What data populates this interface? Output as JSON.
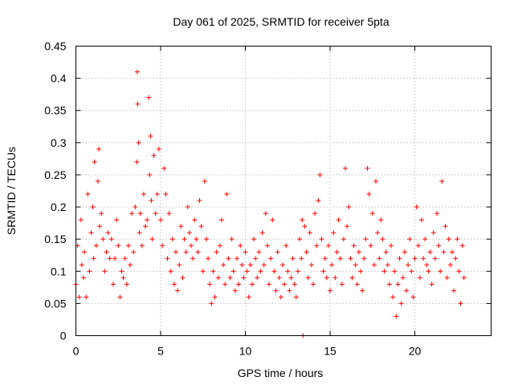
{
  "chart_data": {
    "type": "scatter",
    "title": "Day 061 of 2025, SRMTID for receiver 5pta",
    "xlabel": "GPS time / hours",
    "ylabel": "SRMTID / TECUs",
    "xlim": [
      0,
      24.5
    ],
    "ylim": [
      0,
      0.45
    ],
    "xticks": [
      0,
      5,
      10,
      15,
      20
    ],
    "xtick_labels": [
      "0",
      "5",
      "10",
      "15",
      "20"
    ],
    "yticks": [
      0,
      0.05,
      0.1,
      0.15,
      0.2,
      0.25,
      0.3,
      0.35,
      0.4,
      0.45
    ],
    "ytick_labels": [
      "0",
      "0.05",
      "0.1",
      "0.15",
      "0.2",
      "0.25",
      "0.3",
      "0.35",
      "0.4",
      "0.45"
    ],
    "grid": true,
    "marker": "plus",
    "color": "#ff0000",
    "series": [
      {
        "name": "SRMTID",
        "x": [
          0.0,
          0.1,
          0.2,
          0.3,
          0.35,
          0.45,
          0.5,
          0.6,
          0.7,
          0.8,
          0.9,
          1.0,
          1.05,
          1.1,
          1.2,
          1.3,
          1.35,
          1.4,
          1.5,
          1.6,
          1.7,
          1.8,
          1.9,
          2.0,
          2.1,
          2.2,
          2.3,
          2.4,
          2.5,
          2.6,
          2.7,
          2.8,
          2.9,
          3.0,
          3.1,
          3.2,
          3.3,
          3.4,
          3.5,
          3.6,
          3.62,
          3.65,
          3.7,
          3.75,
          3.8,
          3.9,
          4.0,
          4.1,
          4.2,
          4.3,
          4.35,
          4.4,
          4.45,
          4.5,
          4.6,
          4.7,
          4.8,
          4.9,
          5.0,
          5.1,
          5.2,
          5.3,
          5.4,
          5.5,
          5.6,
          5.7,
          5.8,
          5.9,
          6.0,
          6.1,
          6.2,
          6.3,
          6.4,
          6.5,
          6.6,
          6.7,
          6.8,
          6.9,
          7.0,
          7.1,
          7.2,
          7.3,
          7.4,
          7.5,
          7.6,
          7.7,
          7.8,
          7.9,
          8.0,
          8.1,
          8.2,
          8.3,
          8.4,
          8.5,
          8.6,
          8.7,
          8.8,
          8.9,
          9.0,
          9.1,
          9.2,
          9.3,
          9.4,
          9.5,
          9.6,
          9.7,
          9.8,
          9.9,
          10.0,
          10.1,
          10.2,
          10.3,
          10.4,
          10.5,
          10.6,
          10.7,
          10.8,
          10.9,
          11.0,
          11.1,
          11.2,
          11.3,
          11.4,
          11.5,
          11.6,
          11.7,
          11.8,
          11.9,
          12.0,
          12.1,
          12.2,
          12.3,
          12.4,
          12.5,
          12.6,
          12.7,
          12.8,
          12.9,
          13.0,
          13.1,
          13.2,
          13.3,
          13.35,
          13.4,
          13.5,
          13.6,
          13.7,
          13.8,
          13.9,
          14.0,
          14.1,
          14.2,
          14.3,
          14.4,
          14.5,
          14.6,
          14.7,
          14.8,
          14.9,
          15.0,
          15.1,
          15.2,
          15.3,
          15.4,
          15.5,
          15.6,
          15.7,
          15.8,
          15.9,
          16.0,
          16.1,
          16.2,
          16.3,
          16.4,
          16.5,
          16.6,
          16.7,
          16.8,
          16.9,
          17.0,
          17.1,
          17.2,
          17.3,
          17.4,
          17.5,
          17.6,
          17.7,
          17.8,
          17.9,
          18.0,
          18.1,
          18.2,
          18.3,
          18.4,
          18.5,
          18.6,
          18.7,
          18.8,
          18.9,
          19.0,
          19.1,
          19.2,
          19.3,
          19.4,
          19.5,
          19.6,
          19.7,
          19.8,
          19.9,
          20.0,
          20.1,
          20.2,
          20.3,
          20.4,
          20.5,
          20.6,
          20.7,
          20.8,
          20.9,
          21.0,
          21.1,
          21.2,
          21.3,
          21.4,
          21.5,
          21.6,
          21.7,
          21.8,
          21.9,
          22.0,
          22.1,
          22.2,
          22.3,
          22.4,
          22.5,
          22.6,
          22.7,
          22.8,
          22.9
        ],
        "y": [
          0.08,
          0.14,
          0.06,
          0.18,
          0.11,
          0.09,
          0.13,
          0.06,
          0.22,
          0.1,
          0.16,
          0.2,
          0.12,
          0.27,
          0.14,
          0.24,
          0.29,
          0.17,
          0.19,
          0.15,
          0.1,
          0.13,
          0.16,
          0.12,
          0.15,
          0.08,
          0.12,
          0.18,
          0.14,
          0.06,
          0.1,
          0.09,
          0.12,
          0.08,
          0.14,
          0.11,
          0.19,
          0.13,
          0.2,
          0.27,
          0.41,
          0.36,
          0.3,
          0.16,
          0.19,
          0.14,
          0.22,
          0.17,
          0.18,
          0.37,
          0.25,
          0.31,
          0.21,
          0.15,
          0.28,
          0.19,
          0.22,
          0.29,
          0.18,
          0.14,
          0.26,
          0.22,
          0.12,
          0.19,
          0.1,
          0.15,
          0.08,
          0.13,
          0.07,
          0.11,
          0.17,
          0.09,
          0.15,
          0.13,
          0.2,
          0.16,
          0.14,
          0.12,
          0.18,
          0.15,
          0.13,
          0.21,
          0.17,
          0.1,
          0.24,
          0.15,
          0.12,
          0.08,
          0.05,
          0.1,
          0.06,
          0.13,
          0.09,
          0.14,
          0.18,
          0.11,
          0.08,
          0.22,
          0.12,
          0.09,
          0.15,
          0.1,
          0.07,
          0.12,
          0.08,
          0.14,
          0.11,
          0.09,
          0.13,
          0.1,
          0.06,
          0.11,
          0.08,
          0.15,
          0.12,
          0.09,
          0.13,
          0.1,
          0.16,
          0.11,
          0.19,
          0.14,
          0.08,
          0.12,
          0.18,
          0.1,
          0.07,
          0.13,
          0.09,
          0.06,
          0.11,
          0.08,
          0.14,
          0.1,
          0.07,
          0.09,
          0.12,
          0.08,
          0.06,
          0.1,
          0.15,
          0.12,
          0.18,
          0.0,
          0.17,
          0.13,
          0.09,
          0.16,
          0.11,
          0.08,
          0.19,
          0.14,
          0.21,
          0.25,
          0.15,
          0.1,
          0.12,
          0.09,
          0.14,
          0.07,
          0.11,
          0.16,
          0.09,
          0.13,
          0.18,
          0.12,
          0.08,
          0.15,
          0.26,
          0.17,
          0.2,
          0.12,
          0.09,
          0.14,
          0.11,
          0.08,
          0.13,
          0.1,
          0.07,
          0.12,
          0.15,
          0.26,
          0.22,
          0.14,
          0.19,
          0.11,
          0.24,
          0.16,
          0.12,
          0.18,
          0.15,
          0.1,
          0.13,
          0.11,
          0.08,
          0.14,
          0.06,
          0.1,
          0.03,
          0.08,
          0.12,
          0.05,
          0.09,
          0.13,
          0.07,
          0.11,
          0.15,
          0.1,
          0.06,
          0.12,
          0.2,
          0.14,
          0.09,
          0.18,
          0.12,
          0.15,
          0.11,
          0.1,
          0.13,
          0.08,
          0.16,
          0.12,
          0.19,
          0.14,
          0.1,
          0.24,
          0.13,
          0.17,
          0.09,
          0.15,
          0.11,
          0.13,
          0.07,
          0.12,
          0.15,
          0.1,
          0.05,
          0.14,
          0.09
        ]
      }
    ]
  }
}
